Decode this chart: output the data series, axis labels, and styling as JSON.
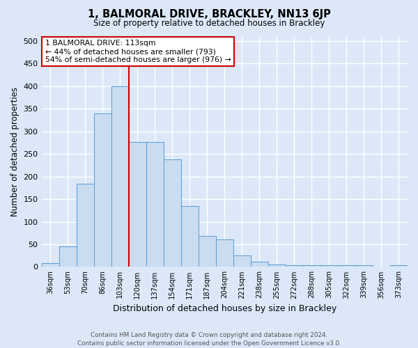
{
  "title": "1, BALMORAL DRIVE, BRACKLEY, NN13 6JP",
  "subtitle": "Size of property relative to detached houses in Brackley",
  "xlabel": "Distribution of detached houses by size in Brackley",
  "ylabel": "Number of detached properties",
  "categories": [
    "36sqm",
    "53sqm",
    "70sqm",
    "86sqm",
    "103sqm",
    "120sqm",
    "137sqm",
    "154sqm",
    "171sqm",
    "187sqm",
    "204sqm",
    "221sqm",
    "238sqm",
    "255sqm",
    "272sqm",
    "288sqm",
    "305sqm",
    "322sqm",
    "339sqm",
    "356sqm",
    "373sqm"
  ],
  "values": [
    8,
    46,
    184,
    340,
    400,
    277,
    277,
    238,
    135,
    68,
    60,
    25,
    11,
    5,
    4,
    3,
    3,
    3,
    3,
    1,
    4
  ],
  "bar_color": "#c9dcf0",
  "bar_edge_color": "#5b9bd5",
  "vline_color": "#cc0000",
  "annotation_text": "1 BALMORAL DRIVE: 113sqm\n← 44% of detached houses are smaller (793)\n54% of semi-detached houses are larger (976) →",
  "annotation_box_color": "#ffffff",
  "annotation_box_edge": "#cc0000",
  "fig_bg_color": "#dce8f8",
  "plot_bg_color": "#dce8f8",
  "grid_color": "#ffffff",
  "footer_text": "Contains HM Land Registry data © Crown copyright and database right 2024.\nContains public sector information licensed under the Open Government Licence v3.0.",
  "ylim": [
    0,
    510
  ],
  "yticks": [
    0,
    50,
    100,
    150,
    200,
    250,
    300,
    350,
    400,
    450,
    500
  ]
}
